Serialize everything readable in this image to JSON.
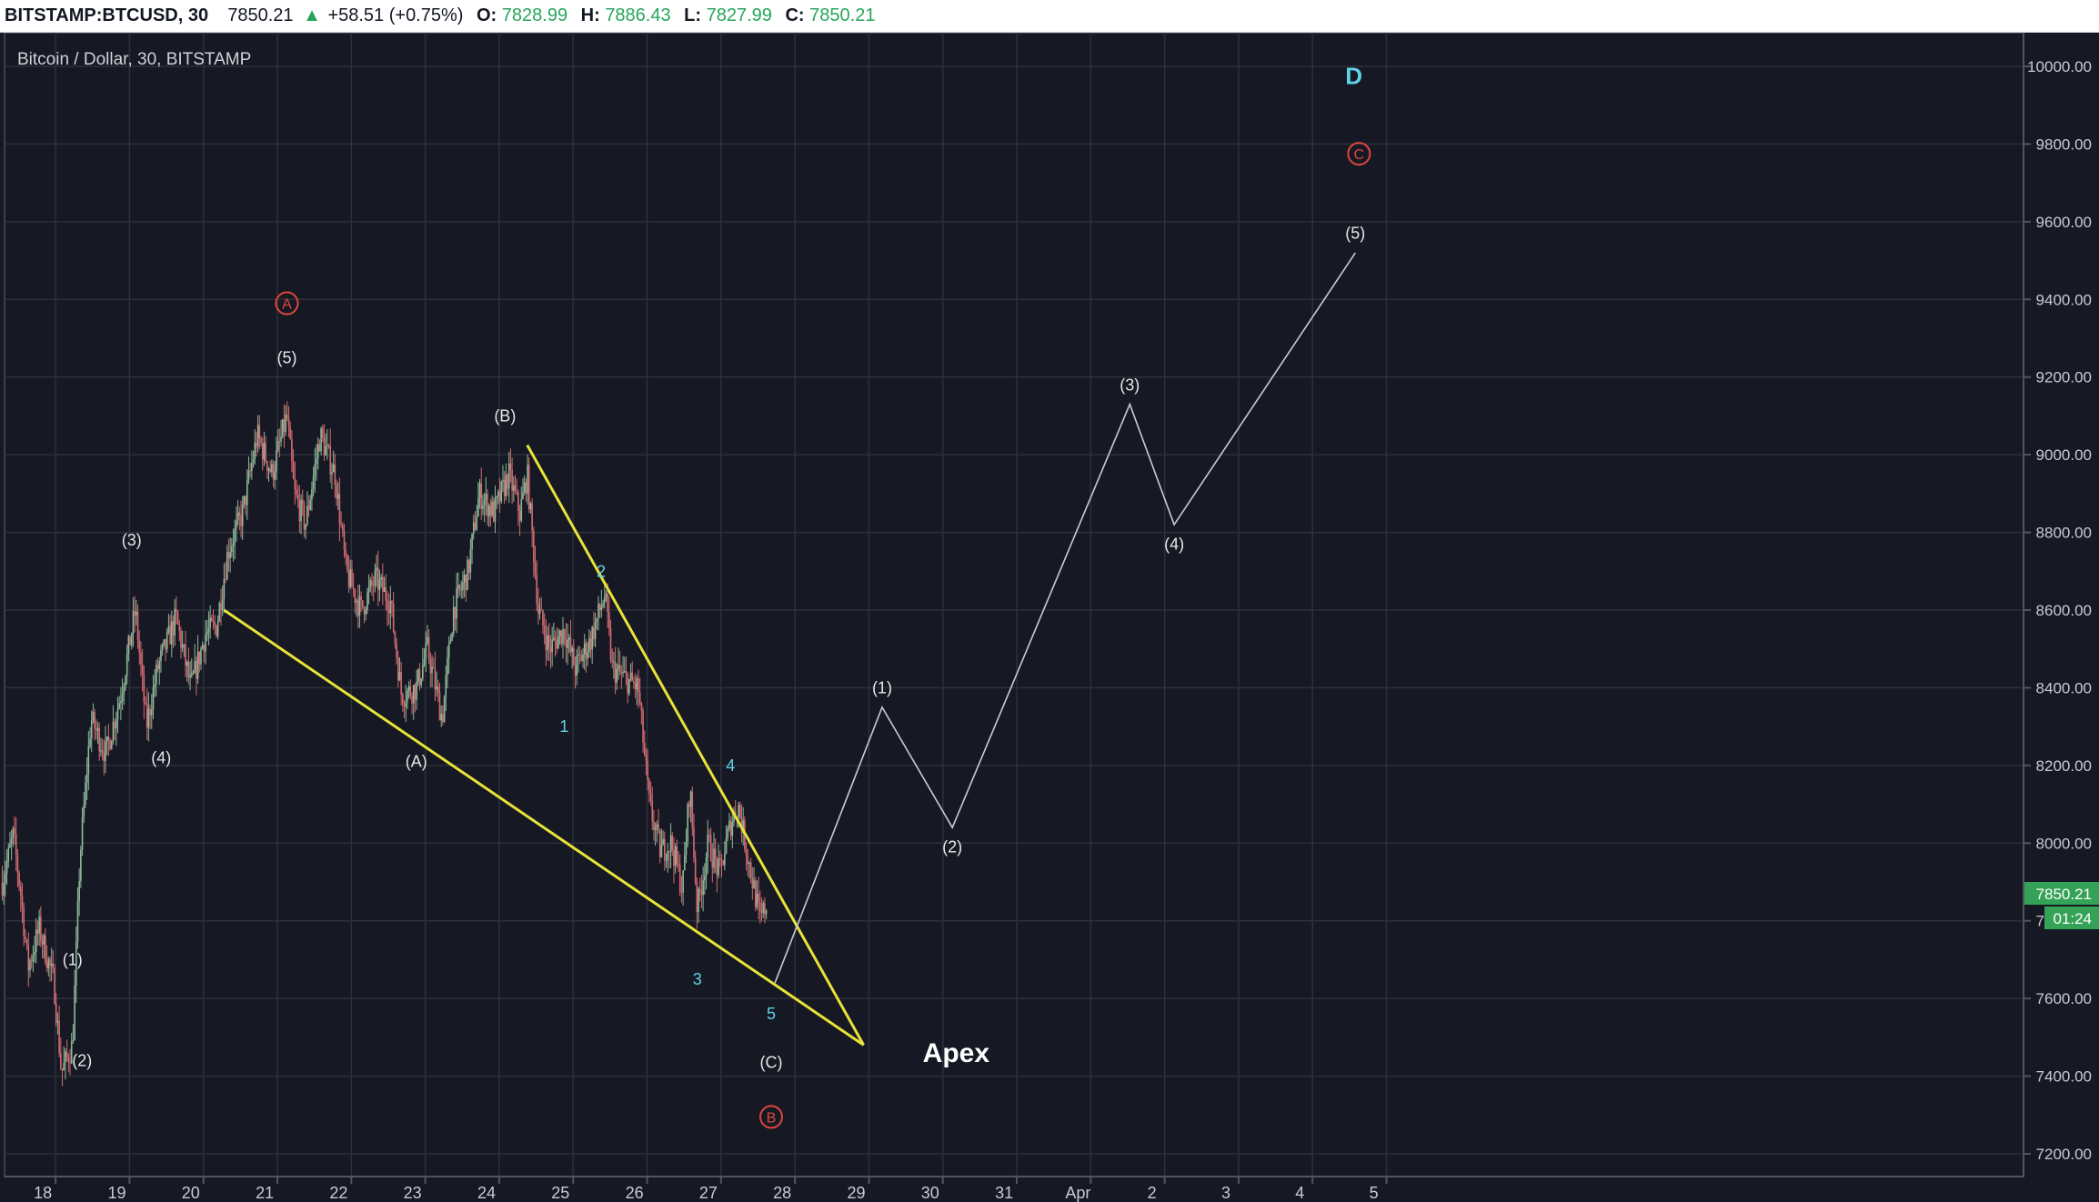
{
  "header": {
    "symbol": "BITSTAMP:BTCUSD, 30",
    "last_price": "7850.21",
    "change_arrow": "up-triangle-icon",
    "change": "+58.51 (+0.75%)",
    "open_label": "O:",
    "open": "7828.99",
    "high_label": "H:",
    "high": "7886.43",
    "low_label": "L:",
    "low": "7827.99",
    "close_label": "C:",
    "close": "7850.21"
  },
  "legend_text": "Bitcoin / Dollar, 30, BITSTAMP",
  "price_tag": {
    "price": "7850.21",
    "countdown": "01:24"
  },
  "colors": {
    "background": "#161923",
    "grid": "#2c303b",
    "candle_up": "#8fb89a",
    "candle_down": "#d36b72",
    "trendline": "#e8e338",
    "projection": "#c9ccd3",
    "label_white": "#e6e6e6",
    "label_cyan": "#5fd3e6",
    "label_red": "#e0463e",
    "tag_green": "#35a357"
  },
  "chart_data": {
    "type": "candlestick",
    "title": "Bitcoin / Dollar, 30, BITSTAMP",
    "xlabel": "",
    "ylabel": "",
    "x_tick_labels": [
      "18",
      "19",
      "20",
      "21",
      "22",
      "23",
      "24",
      "25",
      "26",
      "27",
      "28",
      "29",
      "30",
      "31",
      "Apr",
      "2",
      "3",
      "4",
      "5"
    ],
    "y_tick_labels": [
      "7200.00",
      "7400.00",
      "7600.00",
      "7800.00",
      "8000.00",
      "8200.00",
      "8400.00",
      "8600.00",
      "8800.00",
      "9000.00",
      "9200.00",
      "9400.00",
      "9600.00",
      "9800.00",
      "10000.00"
    ],
    "xlim_days": [
      17.6,
      36.0
    ],
    "ylim": [
      7120,
      10060
    ],
    "grid": true,
    "price_path": [
      {
        "t": 17.6,
        "p": 7900
      },
      {
        "t": 17.75,
        "p": 8020
      },
      {
        "t": 17.85,
        "p": 7870
      },
      {
        "t": 17.95,
        "p": 7680
      },
      {
        "t": 18.1,
        "p": 7780
      },
      {
        "t": 18.3,
        "p": 7640
      },
      {
        "t": 18.4,
        "p": 7410
      },
      {
        "t": 18.55,
        "p": 7480
      },
      {
        "t": 18.65,
        "p": 7960
      },
      {
        "t": 18.8,
        "p": 8320
      },
      {
        "t": 19.0,
        "p": 8230
      },
      {
        "t": 19.2,
        "p": 8380
      },
      {
        "t": 19.4,
        "p": 8600
      },
      {
        "t": 19.55,
        "p": 8300
      },
      {
        "t": 19.7,
        "p": 8450
      },
      {
        "t": 19.95,
        "p": 8580
      },
      {
        "t": 20.15,
        "p": 8400
      },
      {
        "t": 20.35,
        "p": 8540
      },
      {
        "t": 20.5,
        "p": 8560
      },
      {
        "t": 20.65,
        "p": 8750
      },
      {
        "t": 20.85,
        "p": 8850
      },
      {
        "t": 21.05,
        "p": 9050
      },
      {
        "t": 21.25,
        "p": 8950
      },
      {
        "t": 21.45,
        "p": 9100
      },
      {
        "t": 21.55,
        "p": 8900
      },
      {
        "t": 21.7,
        "p": 8820
      },
      {
        "t": 21.9,
        "p": 9050
      },
      {
        "t": 22.1,
        "p": 8950
      },
      {
        "t": 22.25,
        "p": 8700
      },
      {
        "t": 22.45,
        "p": 8600
      },
      {
        "t": 22.65,
        "p": 8680
      },
      {
        "t": 22.85,
        "p": 8620
      },
      {
        "t": 23.0,
        "p": 8380
      },
      {
        "t": 23.2,
        "p": 8400
      },
      {
        "t": 23.35,
        "p": 8500
      },
      {
        "t": 23.55,
        "p": 8320
      },
      {
        "t": 23.7,
        "p": 8600
      },
      {
        "t": 23.9,
        "p": 8700
      },
      {
        "t": 24.05,
        "p": 8900
      },
      {
        "t": 24.25,
        "p": 8850
      },
      {
        "t": 24.45,
        "p": 8950
      },
      {
        "t": 24.6,
        "p": 8850
      },
      {
        "t": 24.7,
        "p": 8950
      },
      {
        "t": 24.85,
        "p": 8600
      },
      {
        "t": 25.0,
        "p": 8500
      },
      {
        "t": 25.2,
        "p": 8550
      },
      {
        "t": 25.35,
        "p": 8450
      },
      {
        "t": 25.55,
        "p": 8520
      },
      {
        "t": 25.75,
        "p": 8640
      },
      {
        "t": 25.85,
        "p": 8450
      },
      {
        "t": 26.05,
        "p": 8420
      },
      {
        "t": 26.2,
        "p": 8400
      },
      {
        "t": 26.35,
        "p": 8100
      },
      {
        "t": 26.5,
        "p": 7980
      },
      {
        "t": 26.65,
        "p": 8000
      },
      {
        "t": 26.8,
        "p": 7880
      },
      {
        "t": 26.9,
        "p": 8150
      },
      {
        "t": 27.0,
        "p": 7830
      },
      {
        "t": 27.15,
        "p": 8000
      },
      {
        "t": 27.3,
        "p": 7920
      },
      {
        "t": 27.45,
        "p": 8050
      },
      {
        "t": 27.55,
        "p": 8100
      },
      {
        "t": 27.7,
        "p": 7950
      },
      {
        "t": 27.85,
        "p": 7800
      },
      {
        "t": 27.95,
        "p": 7850
      }
    ],
    "series": [
      {
        "type": "trendline",
        "points": [
          {
            "t": 20.6,
            "p": 8600
          },
          {
            "t": 29.25,
            "p": 7480
          }
        ]
      },
      {
        "type": "trendline",
        "points": [
          {
            "t": 24.7,
            "p": 9025
          },
          {
            "t": 29.25,
            "p": 7480
          }
        ]
      },
      {
        "type": "projection",
        "points": [
          {
            "t": 28.05,
            "p": 7640
          },
          {
            "t": 29.5,
            "p": 8350
          },
          {
            "t": 30.45,
            "p": 8040
          },
          {
            "t": 32.85,
            "p": 9130
          },
          {
            "t": 33.45,
            "p": 8820
          },
          {
            "t": 35.9,
            "p": 9520
          }
        ]
      }
    ],
    "wave_labels": [
      {
        "text": "(1)",
        "t": 18.55,
        "p": 7700,
        "color": "white"
      },
      {
        "text": "(2)",
        "t": 18.68,
        "p": 7440,
        "color": "white"
      },
      {
        "text": "(3)",
        "t": 19.35,
        "p": 8780,
        "color": "white"
      },
      {
        "text": "(4)",
        "t": 19.75,
        "p": 8220,
        "color": "white"
      },
      {
        "text": "(5)",
        "t": 21.45,
        "p": 9250,
        "color": "white"
      },
      {
        "text": "A",
        "t": 21.45,
        "p": 9390,
        "color": "red",
        "circled": true
      },
      {
        "text": "(A)",
        "t": 23.2,
        "p": 8210,
        "color": "white"
      },
      {
        "text": "(B)",
        "t": 24.4,
        "p": 9100,
        "color": "white"
      },
      {
        "text": "1",
        "t": 25.2,
        "p": 8300,
        "color": "cyan"
      },
      {
        "text": "2",
        "t": 25.7,
        "p": 8700,
        "color": "cyan"
      },
      {
        "text": "3",
        "t": 27.0,
        "p": 7650,
        "color": "cyan"
      },
      {
        "text": "4",
        "t": 27.45,
        "p": 8200,
        "color": "cyan"
      },
      {
        "text": "5",
        "t": 28.0,
        "p": 7560,
        "color": "cyan"
      },
      {
        "text": "(C)",
        "t": 28.0,
        "p": 7435,
        "color": "white"
      },
      {
        "text": "B",
        "t": 28.0,
        "p": 7295,
        "color": "red",
        "circled": true
      },
      {
        "text": "(1)",
        "t": 29.5,
        "p": 8400,
        "color": "white"
      },
      {
        "text": "(2)",
        "t": 30.45,
        "p": 7990,
        "color": "white"
      },
      {
        "text": "(3)",
        "t": 32.85,
        "p": 9180,
        "color": "white"
      },
      {
        "text": "(4)",
        "t": 33.45,
        "p": 8770,
        "color": "white"
      },
      {
        "text": "(5)",
        "t": 35.9,
        "p": 9570,
        "color": "white"
      },
      {
        "text": "C",
        "t": 35.95,
        "p": 9775,
        "color": "red",
        "circled": true
      },
      {
        "text": "D",
        "t": 35.88,
        "p": 9975,
        "color": "cyan",
        "bold": true
      }
    ],
    "annotations": [
      {
        "text": "Apex",
        "t": 30.05,
        "p": 7460
      }
    ]
  }
}
